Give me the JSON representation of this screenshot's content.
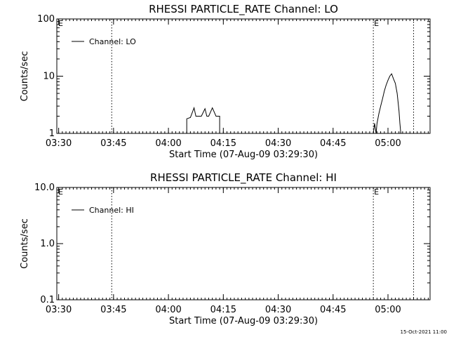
{
  "footer": {
    "timestamp": "15-Oct-2021 11:00"
  },
  "chart_data": [
    {
      "type": "line",
      "title": "RHESSI PARTICLE_RATE Channel: LO",
      "xlabel": "Start Time (07-Aug-09 03:29:30)",
      "ylabel": "Counts/sec",
      "yscale": "log",
      "ylim": [
        1,
        100
      ],
      "xlim": [
        "03:29:30",
        "05:11:30"
      ],
      "x_ticks": [
        "03:30",
        "03:45",
        "04:00",
        "04:15",
        "04:30",
        "04:45",
        "05:00"
      ],
      "y_ticks": [
        "1",
        "10",
        "100"
      ],
      "legend": {
        "entries": [
          "Channel: LO"
        ],
        "position": "top-left"
      },
      "markers": [
        {
          "time": "03:44:30",
          "label": ""
        },
        {
          "time": "04:56:00",
          "label": "E"
        },
        {
          "time": "05:07:00",
          "label": ""
        }
      ],
      "edge_labels": [
        "E"
      ],
      "series": [
        {
          "name": "Channel: LO",
          "color": "#000000",
          "points": [
            [
              "04:05:00",
              1
            ],
            [
              "04:05:00",
              1.8
            ],
            [
              "04:06:00",
              1.9
            ],
            [
              "04:07:00",
              2.8
            ],
            [
              "04:07:30",
              2
            ],
            [
              "04:08:00",
              2
            ],
            [
              "04:09:00",
              2
            ],
            [
              "04:10:00",
              2.7
            ],
            [
              "04:10:30",
              2
            ],
            [
              "04:11:00",
              2
            ],
            [
              "04:12:00",
              2.8
            ],
            [
              "04:13:00",
              2
            ],
            [
              "04:14:00",
              2
            ],
            [
              "04:14:00",
              1
            ],
            [
              "04:56:00",
              1
            ],
            [
              "04:56:20",
              1.5
            ],
            [
              "04:56:45",
              1
            ],
            [
              "04:57:00",
              1.5
            ],
            [
              "04:57:30",
              2.2
            ],
            [
              "04:58:00",
              3
            ],
            [
              "04:58:30",
              4
            ],
            [
              "04:59:00",
              5.5
            ],
            [
              "04:59:30",
              7
            ],
            [
              "05:00:00",
              8.5
            ],
            [
              "05:00:30",
              10
            ],
            [
              "05:01:00",
              11
            ],
            [
              "05:01:30",
              9
            ],
            [
              "05:02:00",
              7.5
            ],
            [
              "05:02:30",
              5
            ],
            [
              "05:03:00",
              2.5
            ],
            [
              "05:03:15",
              1.5
            ],
            [
              "05:03:30",
              1
            ]
          ]
        }
      ]
    },
    {
      "type": "line",
      "title": "RHESSI PARTICLE_RATE Channel: HI",
      "xlabel": "Start Time (07-Aug-09 03:29:30)",
      "ylabel": "Counts/sec",
      "yscale": "log",
      "ylim": [
        0.1,
        10
      ],
      "xlim": [
        "03:29:30",
        "05:11:30"
      ],
      "x_ticks": [
        "03:30",
        "03:45",
        "04:00",
        "04:15",
        "04:30",
        "04:45",
        "05:00"
      ],
      "y_ticks": [
        "0.1",
        "1.0",
        "10.0"
      ],
      "legend": {
        "entries": [
          "Channel: HI"
        ],
        "position": "top-left"
      },
      "markers": [
        {
          "time": "03:44:30",
          "label": ""
        },
        {
          "time": "04:56:00",
          "label": "E"
        },
        {
          "time": "05:07:00",
          "label": ""
        }
      ],
      "edge_labels": [
        "E"
      ],
      "series": [
        {
          "name": "Channel: HI",
          "color": "#000000",
          "points": []
        }
      ]
    }
  ]
}
